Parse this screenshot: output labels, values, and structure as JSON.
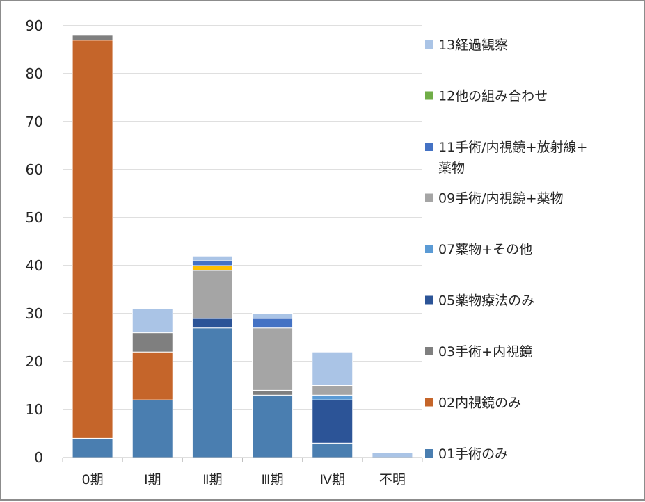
{
  "chart_data": {
    "type": "bar",
    "stacked": true,
    "title": "",
    "xlabel": "",
    "ylabel": "",
    "ylim": [
      0,
      90
    ],
    "yticks": [
      0,
      10,
      20,
      30,
      40,
      50,
      60,
      70,
      80,
      90
    ],
    "grid": true,
    "legend_position": "right",
    "categories": [
      "0期",
      "Ⅰ期",
      "Ⅱ期",
      "Ⅲ期",
      "Ⅳ期",
      "不明"
    ],
    "series": [
      {
        "name": "01手術のみ",
        "color": "#4a7eb0",
        "values": [
          4,
          12,
          27,
          13,
          3,
          0
        ]
      },
      {
        "name": "02内視鏡のみ",
        "color": "#c5652a",
        "values": [
          83,
          10,
          0,
          0,
          0,
          0
        ]
      },
      {
        "name": "03手術+内視鏡",
        "color": "#7f7f7f",
        "values": [
          1,
          4,
          0,
          1,
          0,
          0
        ]
      },
      {
        "name": "05薬物療法のみ",
        "color": "#2c5497",
        "values": [
          0,
          0,
          2,
          0,
          9,
          0
        ]
      },
      {
        "name": "07薬物+その他",
        "color": "#5b9bd5",
        "values": [
          0,
          0,
          0,
          0,
          1,
          0
        ]
      },
      {
        "name": "09手術/内視鏡+薬物",
        "color": "#a5a5a5",
        "values": [
          0,
          0,
          10,
          13,
          2,
          0
        ]
      },
      {
        "name": "",
        "color": "#ffc000",
        "values": [
          0,
          0,
          1,
          0,
          0,
          0
        ]
      },
      {
        "name": "11手術/内視鏡+放射線+薬物",
        "color": "#4472c4",
        "values": [
          0,
          0,
          1,
          2,
          0,
          0
        ]
      },
      {
        "name": "12他の組み合わせ",
        "color": "#70ad47",
        "values": [
          0,
          0,
          0,
          0,
          0,
          0
        ]
      },
      {
        "name": "13経過観察",
        "color": "#aac4e6",
        "values": [
          0,
          5,
          1,
          1,
          7,
          1
        ]
      }
    ],
    "legend": [
      {
        "lines": [
          "13経過観察"
        ],
        "color": "#aac4e6"
      },
      {
        "lines": [
          "12他の組み合わせ"
        ],
        "color": "#70ad47"
      },
      {
        "lines": [
          "11手術/内視鏡+放射線+",
          "薬物"
        ],
        "color": "#4472c4"
      },
      {
        "lines": [
          "09手術/内視鏡+薬物"
        ],
        "color": "#a5a5a5"
      },
      {
        "lines": [
          "07薬物+その他"
        ],
        "color": "#5b9bd5"
      },
      {
        "lines": [
          "05薬物療法のみ"
        ],
        "color": "#2c5497"
      },
      {
        "lines": [
          "03手術+内視鏡"
        ],
        "color": "#7f7f7f"
      },
      {
        "lines": [
          "02内視鏡のみ"
        ],
        "color": "#c5652a"
      },
      {
        "lines": [
          "01手術のみ"
        ],
        "color": "#4a7eb0"
      }
    ]
  }
}
